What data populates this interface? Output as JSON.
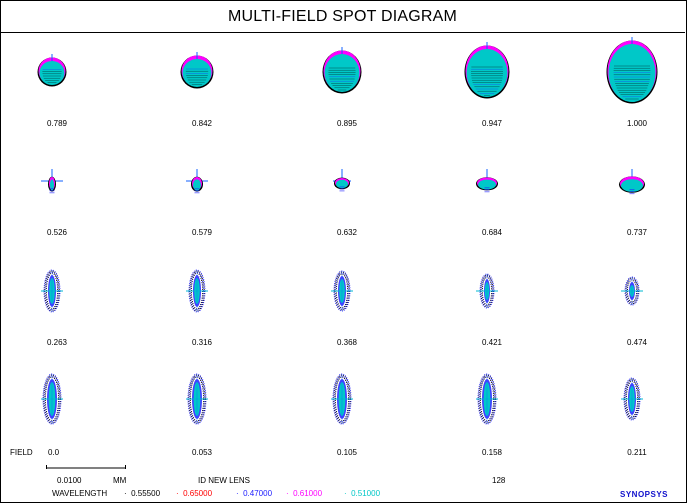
{
  "title": "MULTI-FIELD SPOT DIAGRAM",
  "field_label": "FIELD",
  "rows": [
    {
      "fields": [
        "0.789",
        "0.842",
        "0.895",
        "0.947",
        "1.000"
      ]
    },
    {
      "fields": [
        "0.526",
        "0.579",
        "0.632",
        "0.684",
        "0.737"
      ]
    },
    {
      "fields": [
        "0.263",
        "0.316",
        "0.368",
        "0.421",
        "0.474"
      ]
    },
    {
      "fields": [
        "0.0",
        "0.053",
        "0.105",
        "0.158",
        "0.211"
      ]
    }
  ],
  "scale": {
    "value": "0.0100",
    "unit": "MM"
  },
  "lens_id": {
    "label": "ID NEW LENS",
    "number": "128"
  },
  "wavelength": {
    "label": "WAVELENGTH",
    "items": [
      {
        "value": "0.55500",
        "color": "#000000"
      },
      {
        "value": "0.65000",
        "color": "#ff0000"
      },
      {
        "value": "0.47000",
        "color": "#2020ff"
      },
      {
        "value": "0.61000",
        "color": "#ff00ff"
      },
      {
        "value": "0.51000",
        "color": "#00c8c8"
      }
    ]
  },
  "logo_text": "SYNOPSYS"
}
